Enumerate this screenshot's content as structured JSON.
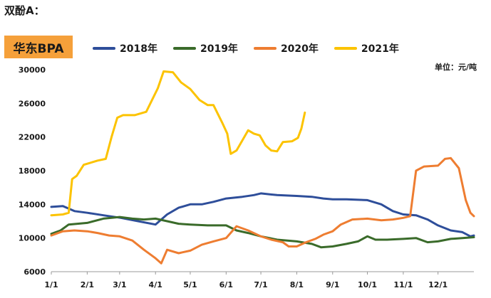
{
  "heading": "双酚A：",
  "badge": "华东BPA",
  "unit": "单位：元/吨",
  "colors": {
    "s2018": "#2e4e9a",
    "s2019": "#3a6b2a",
    "s2020": "#ee7d31",
    "s2021": "#fcc300",
    "badge": "#f5a03a"
  },
  "chart_data": {
    "type": "line",
    "title": "华东BPA",
    "xlabel": "",
    "ylabel": "单位：元/吨",
    "ylim": [
      6000,
      30000
    ],
    "xlim": [
      0,
      365
    ],
    "grid": false,
    "legend": "top",
    "y_ticks": [
      6000,
      10000,
      14000,
      18000,
      22000,
      26000,
      30000
    ],
    "x_ticks": [
      {
        "label": "1/1",
        "day": 0
      },
      {
        "label": "2/1",
        "day": 31
      },
      {
        "label": "3/1",
        "day": 59
      },
      {
        "label": "4/1",
        "day": 90
      },
      {
        "label": "5/1",
        "day": 120
      },
      {
        "label": "6/1",
        "day": 151
      },
      {
        "label": "7/1",
        "day": 181
      },
      {
        "label": "8/1",
        "day": 212
      },
      {
        "label": "9/1",
        "day": 243
      },
      {
        "label": "10/1",
        "day": 273
      },
      {
        "label": "11/1",
        "day": 304
      },
      {
        "label": "12/1",
        "day": 334
      }
    ],
    "x_unit": "day-of-year",
    "series": [
      {
        "name": "2018年",
        "color": "#2e4e9a",
        "points": [
          [
            0,
            13700
          ],
          [
            10,
            13800
          ],
          [
            20,
            13200
          ],
          [
            31,
            13000
          ],
          [
            45,
            12700
          ],
          [
            60,
            12400
          ],
          [
            75,
            12000
          ],
          [
            90,
            11600
          ],
          [
            100,
            12800
          ],
          [
            110,
            13600
          ],
          [
            120,
            14000
          ],
          [
            130,
            14000
          ],
          [
            140,
            14300
          ],
          [
            151,
            14700
          ],
          [
            165,
            14900
          ],
          [
            175,
            15100
          ],
          [
            181,
            15300
          ],
          [
            195,
            15100
          ],
          [
            212,
            15000
          ],
          [
            225,
            14900
          ],
          [
            235,
            14700
          ],
          [
            243,
            14600
          ],
          [
            255,
            14600
          ],
          [
            273,
            14500
          ],
          [
            285,
            14000
          ],
          [
            295,
            13200
          ],
          [
            304,
            12800
          ],
          [
            315,
            12700
          ],
          [
            325,
            12200
          ],
          [
            334,
            11500
          ],
          [
            345,
            10900
          ],
          [
            355,
            10700
          ],
          [
            362,
            10200
          ],
          [
            365,
            10300
          ]
        ]
      },
      {
        "name": "2019年",
        "color": "#3a6b2a",
        "points": [
          [
            0,
            10500
          ],
          [
            8,
            10900
          ],
          [
            15,
            11600
          ],
          [
            31,
            11800
          ],
          [
            45,
            12300
          ],
          [
            59,
            12500
          ],
          [
            70,
            12300
          ],
          [
            80,
            12200
          ],
          [
            90,
            12300
          ],
          [
            100,
            12000
          ],
          [
            110,
            11700
          ],
          [
            120,
            11600
          ],
          [
            135,
            11500
          ],
          [
            151,
            11500
          ],
          [
            160,
            10900
          ],
          [
            170,
            10600
          ],
          [
            181,
            10200
          ],
          [
            195,
            9800
          ],
          [
            212,
            9600
          ],
          [
            225,
            9300
          ],
          [
            233,
            8900
          ],
          [
            243,
            9000
          ],
          [
            255,
            9300
          ],
          [
            265,
            9600
          ],
          [
            273,
            10200
          ],
          [
            280,
            9800
          ],
          [
            290,
            9800
          ],
          [
            304,
            9900
          ],
          [
            315,
            10000
          ],
          [
            325,
            9500
          ],
          [
            334,
            9600
          ],
          [
            345,
            9900
          ],
          [
            355,
            10000
          ],
          [
            365,
            10100
          ]
        ]
      },
      {
        "name": "2020年",
        "color": "#ee7d31",
        "points": [
          [
            0,
            10300
          ],
          [
            10,
            10800
          ],
          [
            20,
            10900
          ],
          [
            31,
            10800
          ],
          [
            40,
            10600
          ],
          [
            50,
            10300
          ],
          [
            59,
            10200
          ],
          [
            70,
            9700
          ],
          [
            80,
            8600
          ],
          [
            90,
            7600
          ],
          [
            95,
            7000
          ],
          [
            100,
            8600
          ],
          [
            110,
            8200
          ],
          [
            120,
            8500
          ],
          [
            130,
            9200
          ],
          [
            140,
            9600
          ],
          [
            151,
            10000
          ],
          [
            160,
            11400
          ],
          [
            170,
            10900
          ],
          [
            181,
            10200
          ],
          [
            190,
            9800
          ],
          [
            200,
            9500
          ],
          [
            205,
            9000
          ],
          [
            212,
            9000
          ],
          [
            220,
            9500
          ],
          [
            228,
            9900
          ],
          [
            235,
            10400
          ],
          [
            243,
            10800
          ],
          [
            250,
            11600
          ],
          [
            260,
            12200
          ],
          [
            273,
            12300
          ],
          [
            285,
            12100
          ],
          [
            295,
            12200
          ],
          [
            304,
            12400
          ],
          [
            310,
            12600
          ],
          [
            315,
            18000
          ],
          [
            322,
            18500
          ],
          [
            334,
            18600
          ],
          [
            340,
            19400
          ],
          [
            345,
            19500
          ],
          [
            352,
            18300
          ],
          [
            358,
            14500
          ],
          [
            362,
            13000
          ],
          [
            365,
            12600
          ]
        ]
      },
      {
        "name": "2021年",
        "color": "#fcc300",
        "points": [
          [
            0,
            12700
          ],
          [
            10,
            12800
          ],
          [
            15,
            13000
          ],
          [
            18,
            17000
          ],
          [
            22,
            17400
          ],
          [
            28,
            18700
          ],
          [
            40,
            19200
          ],
          [
            47,
            19400
          ],
          [
            52,
            22000
          ],
          [
            57,
            24300
          ],
          [
            62,
            24600
          ],
          [
            72,
            24600
          ],
          [
            82,
            25000
          ],
          [
            92,
            27800
          ],
          [
            97,
            29800
          ],
          [
            105,
            29700
          ],
          [
            112,
            28500
          ],
          [
            120,
            27700
          ],
          [
            128,
            26400
          ],
          [
            135,
            25800
          ],
          [
            140,
            25800
          ],
          [
            148,
            23600
          ],
          [
            152,
            22400
          ],
          [
            155,
            20000
          ],
          [
            160,
            20400
          ],
          [
            165,
            21600
          ],
          [
            170,
            22800
          ],
          [
            175,
            22400
          ],
          [
            180,
            22200
          ],
          [
            185,
            21000
          ],
          [
            190,
            20400
          ],
          [
            195,
            20300
          ],
          [
            200,
            21400
          ],
          [
            208,
            21500
          ],
          [
            213,
            21900
          ],
          [
            216,
            23000
          ],
          [
            219,
            24900
          ]
        ]
      }
    ]
  }
}
